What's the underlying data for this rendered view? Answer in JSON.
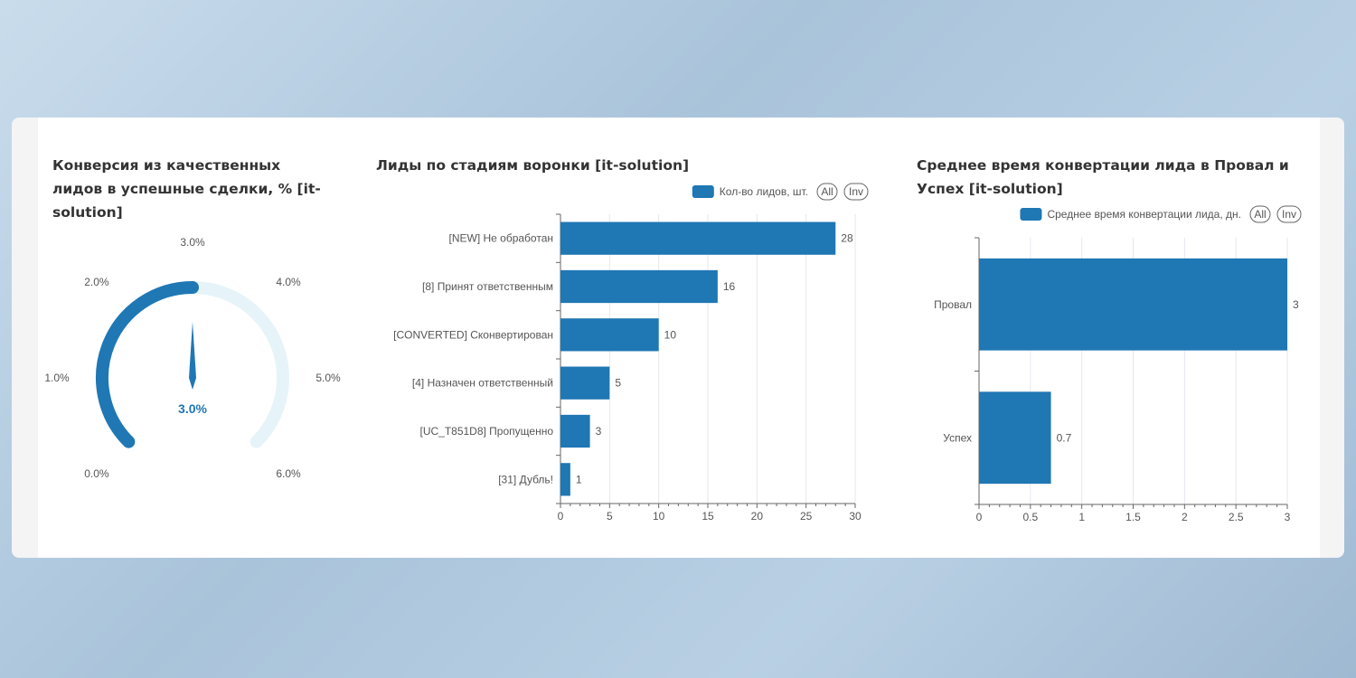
{
  "colors": {
    "bar": "#1f77b4",
    "track": "#e6f4f9"
  },
  "chart_data": [
    {
      "type": "gauge",
      "title": "Конверсия из качественных лидов в успешные сделки, % [it-solution]",
      "value": 3.0,
      "value_label": "3.0%",
      "min": 0,
      "max": 6,
      "ticks": [
        "0.0%",
        "1.0%",
        "2.0%",
        "3.0%",
        "4.0%",
        "5.0%",
        "6.0%"
      ]
    },
    {
      "type": "bar",
      "orientation": "horizontal",
      "title": "Лиды по стадиям воронки [it-solution]",
      "legend": {
        "label": "Кол-во лидов, шт.",
        "all": "All",
        "inv": "Inv",
        "placement": "top-right"
      },
      "categories": [
        "[NEW] Не обработан",
        "[8] Принят ответственным",
        "[CONVERTED] Сконвертирован",
        "[4] Назначен ответственный",
        "[UC_T851D8] Пропущенно",
        "[31] Дубль!"
      ],
      "values": [
        28,
        16,
        10,
        5,
        3,
        1
      ],
      "value_labels": [
        "28",
        "16",
        "10",
        "5",
        "3",
        "1"
      ],
      "xlim": [
        0,
        30
      ],
      "xticks": [
        "0",
        "5",
        "10",
        "15",
        "20",
        "25",
        "30"
      ]
    },
    {
      "type": "bar",
      "orientation": "horizontal",
      "title": "Среднее время конвертации лида в Провал и Успех [it-solution]",
      "legend": {
        "label": "Среднее время конвертации лида, дн.",
        "all": "All",
        "inv": "Inv",
        "placement": "top-right"
      },
      "categories": [
        "Провал",
        "Успех"
      ],
      "values": [
        3,
        0.7
      ],
      "value_labels": [
        "3",
        "0.7"
      ],
      "xlim": [
        0,
        3
      ],
      "xticks": [
        "0",
        "0.5",
        "1",
        "1.5",
        "2",
        "2.5",
        "3"
      ]
    }
  ]
}
